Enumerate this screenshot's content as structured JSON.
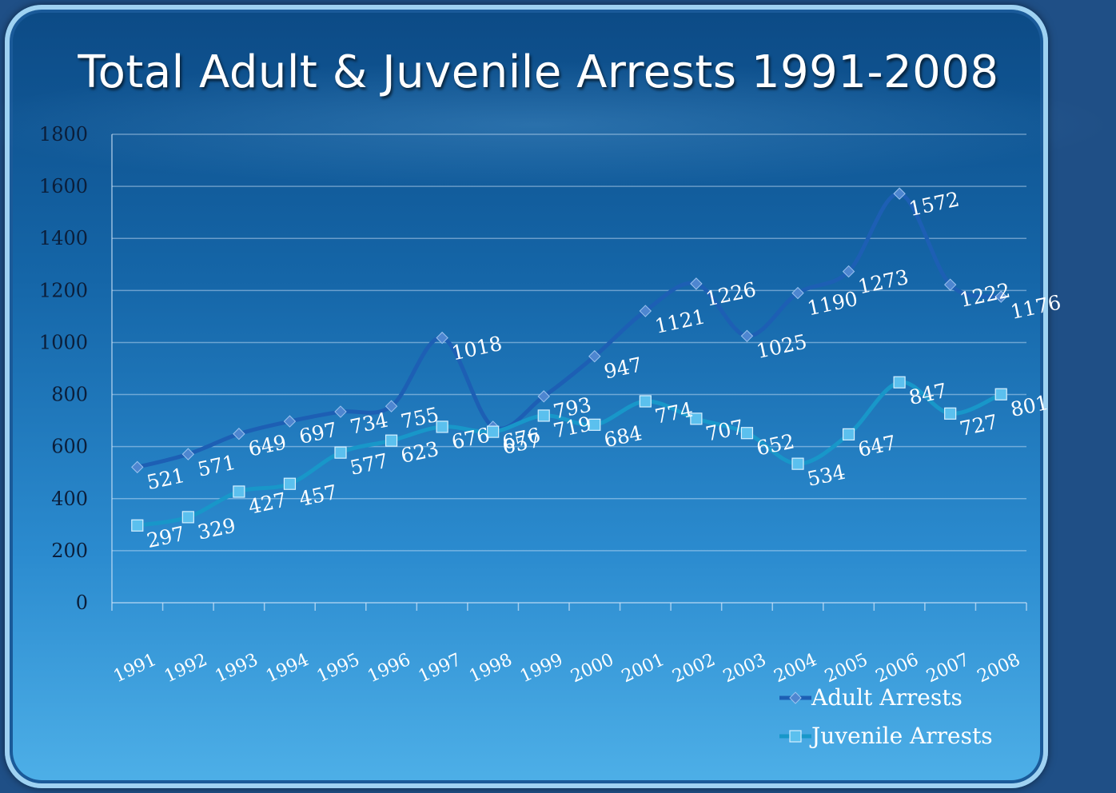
{
  "slide": {
    "title": "Total Adult & Juvenile Arrests 1991-2008"
  },
  "colors": {
    "adult_line": "#1d5fb4",
    "adult_marker": "#4e86d0",
    "juvenile_line": "#1897c9",
    "juvenile_marker": "#5bc0ee"
  },
  "chart_data": {
    "type": "line",
    "title": "Total Adult & Juvenile Arrests 1991-2008",
    "xlabel": "",
    "ylabel": "",
    "x": [
      "1991",
      "1992",
      "1993",
      "1994",
      "1995",
      "1996",
      "1997",
      "1998",
      "1999",
      "2000",
      "2001",
      "2002",
      "2003",
      "2004",
      "2005",
      "2006",
      "2007",
      "2008"
    ],
    "ylim": [
      0,
      1800
    ],
    "yticks": [
      0,
      200,
      400,
      600,
      800,
      1000,
      1200,
      1400,
      1600,
      1800
    ],
    "grid": true,
    "legend_position": "bottom-right",
    "series": [
      {
        "name": "Adult Arrests",
        "marker": "diamond",
        "values": [
          521,
          571,
          649,
          697,
          734,
          755,
          1018,
          676,
          793,
          947,
          1121,
          1226,
          1025,
          1190,
          1273,
          1572,
          1222,
          1176
        ]
      },
      {
        "name": "Juvenile Arrests",
        "marker": "square",
        "values": [
          297,
          329,
          427,
          457,
          577,
          623,
          676,
          657,
          719,
          684,
          774,
          707,
          652,
          534,
          647,
          847,
          727,
          801
        ]
      }
    ]
  }
}
